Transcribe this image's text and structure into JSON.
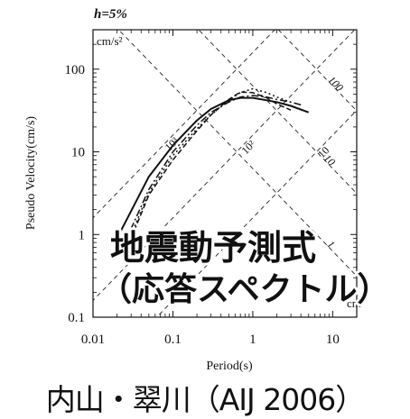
{
  "chart_data": {
    "type": "line",
    "damping_label": "h=5%",
    "xlabel": "Period(s)",
    "ylabel": "Pseudo Velocity(cm/s)",
    "xscale": "log",
    "yscale": "log",
    "xlim": [
      0.01,
      20
    ],
    "ylim": [
      0.1,
      300
    ],
    "xticks": [
      0.01,
      0.1,
      1,
      10
    ],
    "xtick_labels": [
      "0.01",
      "0.1",
      "1",
      "10"
    ],
    "yticks": [
      0.1,
      1,
      10,
      100
    ],
    "ytick_labels": [
      "0.1",
      "1",
      "10",
      "100"
    ],
    "grid": false,
    "unit_labels": {
      "acceleration": "cm/s²",
      "displacement": "cm"
    },
    "accel_lines": [
      1000,
      100,
      10
    ],
    "accel_labels": [
      "10³",
      "10²",
      "10"
    ],
    "disp_lines": [
      100,
      10,
      1
    ],
    "disp_labels": [
      "100",
      "10",
      "1"
    ],
    "series": [
      {
        "style": "solid",
        "x": [
          0.02,
          0.05,
          0.1,
          0.2,
          0.3,
          0.5,
          0.7,
          1.0,
          1.5,
          2.0,
          3.0,
          5.0
        ],
        "y": [
          0.9,
          5.0,
          12,
          24,
          33,
          42,
          45,
          45,
          42,
          40,
          36,
          30
        ]
      },
      {
        "style": "dashed",
        "x": [
          0.03,
          0.05,
          0.1,
          0.2,
          0.3,
          0.5,
          0.7,
          1.0,
          1.5,
          2.0,
          3.0
        ],
        "y": [
          0.9,
          3.0,
          8,
          18,
          28,
          43,
          53,
          52,
          45,
          38,
          32
        ]
      },
      {
        "style": "dash-dot",
        "x": [
          0.025,
          0.05,
          0.1,
          0.2,
          0.3,
          0.5,
          0.7,
          1.0,
          1.5,
          2.0,
          3.0,
          4.0
        ],
        "y": [
          0.8,
          3.5,
          10,
          21,
          30,
          40,
          46,
          48,
          46,
          43,
          40,
          37
        ]
      },
      {
        "style": "dotted",
        "x": [
          0.03,
          0.05,
          0.1,
          0.2,
          0.3,
          0.5,
          0.7,
          1.0,
          1.5,
          2.0,
          3.0
        ],
        "y": [
          1.0,
          3.2,
          9,
          19,
          28,
          42,
          52,
          58,
          52,
          46,
          40
        ]
      }
    ]
  },
  "overlay": {
    "line1": "地震動予測式",
    "line2": "（応答スペクトル）"
  },
  "caption": "内山・翠川（AIJ 2006）"
}
